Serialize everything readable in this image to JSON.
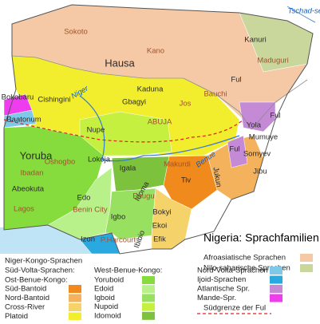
{
  "title": "Nigeria: Sprachfamilien",
  "places": [
    "Tschad-see",
    "Sokoto",
    "Kano",
    "Kanuri",
    "Maduguri",
    "Hausa",
    "Niger",
    "Cishingini",
    "Bokobaru",
    "Baatonum",
    "Kaduna",
    "Gbagyi",
    "Jos",
    "Bauchi",
    "Ful",
    "Ful",
    "Ful",
    "Yola",
    "Nupe",
    "ABUJA",
    "Yoruba",
    "Oshogbo",
    "Ibadan",
    "Abeokuta",
    "Lagos",
    "Lokoja",
    "Igala",
    "Idoma",
    "Makurdi",
    "Benue",
    "Tiv",
    "Jukun",
    "Mumuye",
    "Somyev",
    "Jibu",
    "Edo",
    "Benin City",
    "Igbo",
    "Enugu",
    "Bokyi",
    "Ekoi",
    "Efik",
    "Ibibio",
    "Izon",
    "P.Harcourt"
  ],
  "legend": {
    "families": [
      {
        "label": "Afroasiatische Sprachen",
        "color": "#f6c9a6"
      },
      {
        "label": "Nilo-saharische Sprachen",
        "color": "#c9d79c"
      }
    ],
    "niger_kongo": "Niger-Kongo-Sprachen",
    "sued_volta": "Süd-Volta-Sprachen:",
    "ost_heading": "Ost-Benue-Kongo:",
    "ost": [
      {
        "label": "Süd-Bantoid",
        "color": "#f08a1c"
      },
      {
        "label": "Nord-Bantoid",
        "color": "#f4b25c"
      },
      {
        "label": "Cross-River",
        "color": "#f6d36a"
      },
      {
        "label": "Platoid",
        "color": "#f2ee2e"
      }
    ],
    "west_heading": "West-Benue-Kongo:",
    "west": [
      {
        "label": "Yoruboid",
        "color": "#86dc3c"
      },
      {
        "label": "Edoid",
        "color": "#b8f08a"
      },
      {
        "label": "Igboid",
        "color": "#98e060"
      },
      {
        "label": "Nupoid",
        "color": "#c6f040"
      },
      {
        "label": "Idomoid",
        "color": "#7cc23c"
      }
    ],
    "other": [
      {
        "label": "Nord-Volta-Sprachen",
        "color": "#7ec8e8"
      },
      {
        "label": "Ijoid-Sprachen",
        "color": "#2aa8e0"
      },
      {
        "label": "Atlantische Spr.",
        "color": "#c48ad6"
      },
      {
        "label": "Mande-Spr.",
        "color": "#ee3cee"
      }
    ],
    "border": {
      "label": "Südgrenze der Ful",
      "color": "#e02020"
    }
  }
}
